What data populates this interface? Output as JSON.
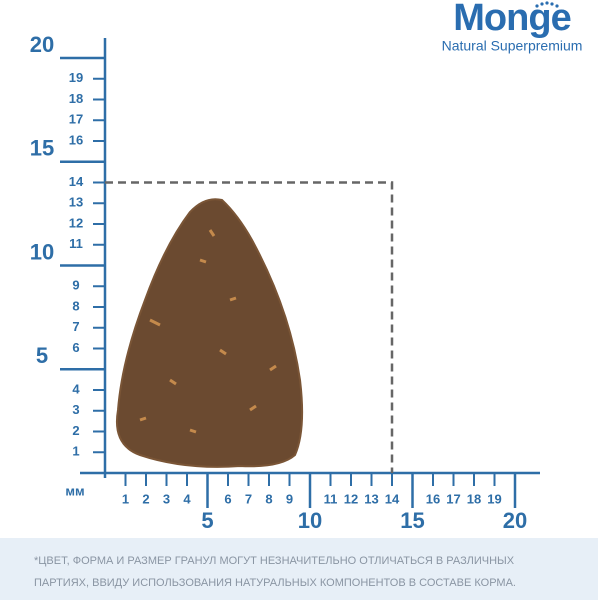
{
  "brand": {
    "name": "Monge",
    "tagline": "Natural Superpremium"
  },
  "ruler": {
    "unit": "мм",
    "y_minor": [
      1,
      2,
      3,
      4,
      6,
      7,
      8,
      9,
      11,
      12,
      13,
      14,
      16,
      17,
      18,
      19
    ],
    "y_major": [
      5,
      10,
      15,
      20
    ],
    "x_minor": [
      1,
      2,
      3,
      4,
      6,
      7,
      8,
      9,
      11,
      12,
      13,
      14,
      16,
      17,
      18,
      19
    ],
    "x_major": [
      5,
      10,
      15,
      20
    ],
    "box_size": 14
  },
  "note": "*ЦВЕТ, ФОРМА И РАЗМЕР ГРАНУЛ МОГУТ НЕЗНАЧИТЕЛЬНО ОТЛИЧАТЬСЯ В РАЗЛИЧНЫХ ПАРТИЯХ, ВВИДУ ИСПОЛЬЗОВАНИЯ НАТУРАЛЬНЫХ КОМПОНЕНТОВ В СОСТАВЕ КОРМА."
}
